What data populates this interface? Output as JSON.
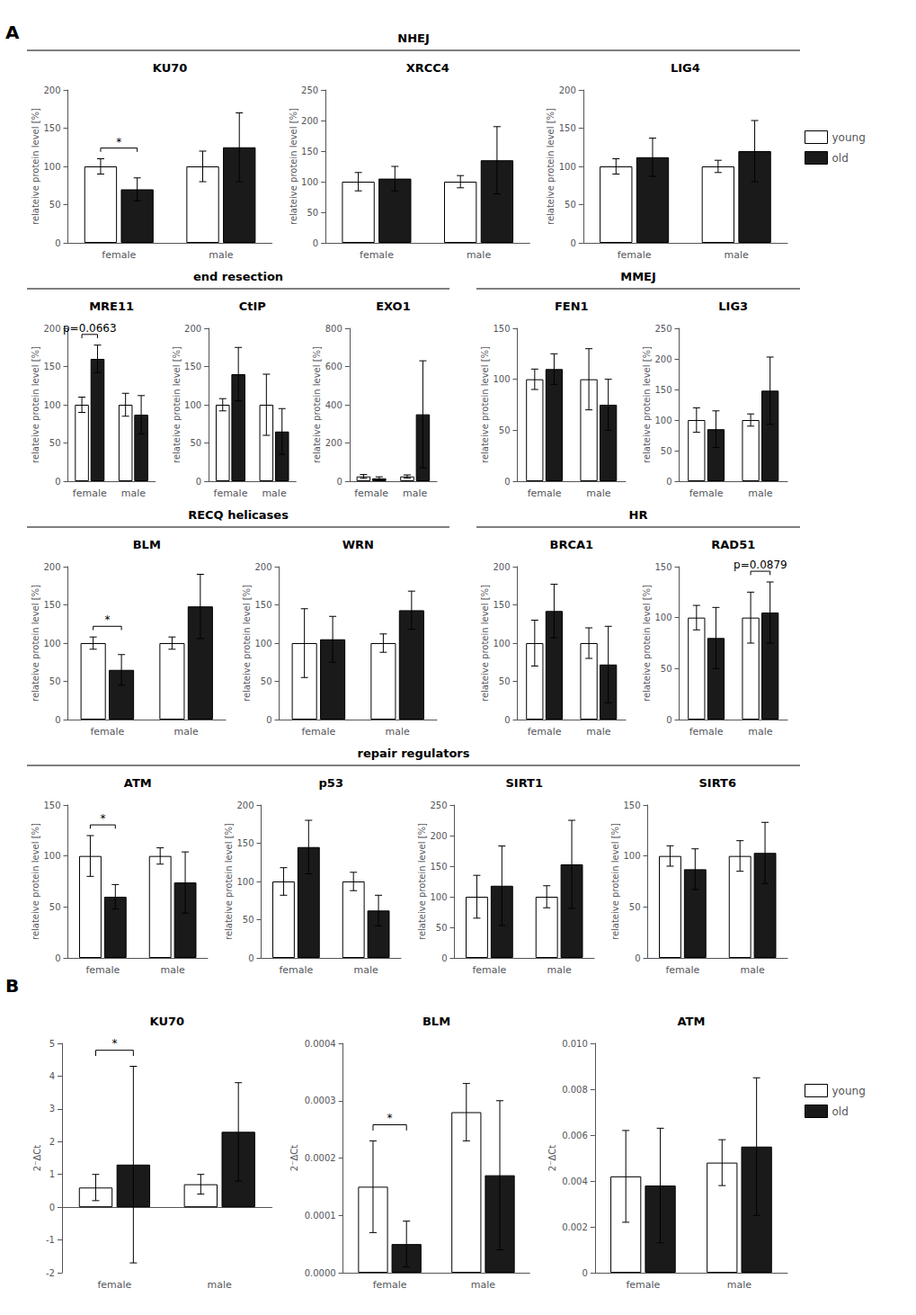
{
  "chart_data": [
    {
      "type": "bar",
      "panel": "A",
      "section": "NHEJ",
      "title": "KU70",
      "ylabel": "relateive protein level [%]",
      "categories": [
        "female",
        "male"
      ],
      "series": [
        {
          "name": "young",
          "color": "white",
          "values": [
            100,
            100
          ],
          "errors": [
            10,
            20
          ]
        },
        {
          "name": "old",
          "color": "#1a1a1a",
          "values": [
            70,
            125
          ],
          "errors": [
            15,
            45
          ]
        }
      ],
      "ylim": [
        0,
        200
      ],
      "yticks": [
        0,
        50,
        100,
        150,
        200
      ],
      "grid": false,
      "annotations": [
        {
          "text": "*",
          "category": "female"
        }
      ]
    },
    {
      "type": "bar",
      "panel": "A",
      "section": "NHEJ",
      "title": "XRCC4",
      "ylabel": "relateive protein level [%]",
      "categories": [
        "female",
        "male"
      ],
      "series": [
        {
          "name": "young",
          "color": "white",
          "values": [
            100,
            100
          ],
          "errors": [
            15,
            10
          ]
        },
        {
          "name": "old",
          "color": "#1a1a1a",
          "values": [
            105,
            135
          ],
          "errors": [
            20,
            55
          ]
        }
      ],
      "ylim": [
        0,
        250
      ],
      "yticks": [
        0,
        50,
        100,
        150,
        200,
        250
      ],
      "grid": false
    },
    {
      "type": "bar",
      "panel": "A",
      "section": "NHEJ",
      "title": "LIG4",
      "ylabel": "relateive protein level [%]",
      "categories": [
        "female",
        "male"
      ],
      "series": [
        {
          "name": "young",
          "color": "white",
          "values": [
            100,
            100
          ],
          "errors": [
            10,
            8
          ]
        },
        {
          "name": "old",
          "color": "#1a1a1a",
          "values": [
            112,
            120
          ],
          "errors": [
            25,
            40
          ]
        }
      ],
      "ylim": [
        0,
        200
      ],
      "yticks": [
        0,
        50,
        100,
        150,
        200
      ],
      "grid": false,
      "legend": "right"
    },
    {
      "type": "bar",
      "panel": "A",
      "section": "end resection",
      "title": "MRE11",
      "ylabel": "relateive protein level [%]",
      "categories": [
        "female",
        "male"
      ],
      "series": [
        {
          "name": "young",
          "color": "white",
          "values": [
            100,
            100
          ],
          "errors": [
            10,
            15
          ]
        },
        {
          "name": "old",
          "color": "#1a1a1a",
          "values": [
            160,
            87
          ],
          "errors": [
            18,
            25
          ]
        }
      ],
      "ylim": [
        0,
        200
      ],
      "yticks": [
        0,
        50,
        100,
        150,
        200
      ],
      "grid": false,
      "annotations": [
        {
          "text": "p=0.0663",
          "category": "female"
        }
      ]
    },
    {
      "type": "bar",
      "panel": "A",
      "section": "end resection",
      "title": "CtIP",
      "ylabel": "relateive protein level [%]",
      "categories": [
        "female",
        "male"
      ],
      "series": [
        {
          "name": "young",
          "color": "white",
          "values": [
            100,
            100
          ],
          "errors": [
            8,
            40
          ]
        },
        {
          "name": "old",
          "color": "#1a1a1a",
          "values": [
            140,
            65
          ],
          "errors": [
            35,
            30
          ]
        }
      ],
      "ylim": [
        0,
        200
      ],
      "yticks": [
        0,
        50,
        100,
        150,
        200
      ],
      "grid": false
    },
    {
      "type": "bar",
      "panel": "A",
      "section": "end resection",
      "title": "EXO1",
      "ylabel": "relateive protein level [%]",
      "categories": [
        "female",
        "male"
      ],
      "series": [
        {
          "name": "young",
          "color": "white",
          "values": [
            25,
            25
          ],
          "errors": [
            10,
            8
          ]
        },
        {
          "name": "old",
          "color": "#1a1a1a",
          "values": [
            15,
            350
          ],
          "errors": [
            8,
            280
          ]
        }
      ],
      "ylim": [
        0,
        800
      ],
      "yticks": [
        0,
        200,
        400,
        600,
        800
      ],
      "grid": false
    },
    {
      "type": "bar",
      "panel": "A",
      "section": "MMEJ",
      "title": "FEN1",
      "ylabel": "relateive protein level [%]",
      "categories": [
        "female",
        "male"
      ],
      "series": [
        {
          "name": "young",
          "color": "white",
          "values": [
            100,
            100
          ],
          "errors": [
            10,
            30
          ]
        },
        {
          "name": "old",
          "color": "#1a1a1a",
          "values": [
            110,
            75
          ],
          "errors": [
            15,
            25
          ]
        }
      ],
      "ylim": [
        0,
        150
      ],
      "yticks": [
        0,
        50,
        100,
        150
      ],
      "grid": false
    },
    {
      "type": "bar",
      "panel": "A",
      "section": "MMEJ",
      "title": "LIG3",
      "ylabel": "relateive protein level [%]",
      "categories": [
        "female",
        "male"
      ],
      "series": [
        {
          "name": "young",
          "color": "white",
          "values": [
            100,
            100
          ],
          "errors": [
            20,
            10
          ]
        },
        {
          "name": "old",
          "color": "#1a1a1a",
          "values": [
            85,
            148
          ],
          "errors": [
            30,
            55
          ]
        }
      ],
      "ylim": [
        0,
        250
      ],
      "yticks": [
        0,
        50,
        100,
        150,
        200,
        250
      ],
      "grid": false
    },
    {
      "type": "bar",
      "panel": "A",
      "section": "RECQ helicases",
      "title": "BLM",
      "ylabel": "relateive protein level [%]",
      "categories": [
        "female",
        "male"
      ],
      "series": [
        {
          "name": "young",
          "color": "white",
          "values": [
            100,
            100
          ],
          "errors": [
            8,
            8
          ]
        },
        {
          "name": "old",
          "color": "#1a1a1a",
          "values": [
            65,
            148
          ],
          "errors": [
            20,
            42
          ]
        }
      ],
      "ylim": [
        0,
        200
      ],
      "yticks": [
        0,
        50,
        100,
        150,
        200
      ],
      "grid": false,
      "annotations": [
        {
          "text": "*",
          "category": "female"
        }
      ]
    },
    {
      "type": "bar",
      "panel": "A",
      "section": "RECQ helicases",
      "title": "WRN",
      "ylabel": "relateive protein level [%]",
      "categories": [
        "female",
        "male"
      ],
      "series": [
        {
          "name": "young",
          "color": "white",
          "values": [
            100,
            100
          ],
          "errors": [
            45,
            12
          ]
        },
        {
          "name": "old",
          "color": "#1a1a1a",
          "values": [
            105,
            143
          ],
          "errors": [
            30,
            25
          ]
        }
      ],
      "ylim": [
        0,
        200
      ],
      "yticks": [
        0,
        50,
        100,
        150,
        200
      ],
      "grid": false
    },
    {
      "type": "bar",
      "panel": "A",
      "section": "HR",
      "title": "BRCA1",
      "ylabel": "relateive protein level [%]",
      "categories": [
        "female",
        "male"
      ],
      "series": [
        {
          "name": "young",
          "color": "white",
          "values": [
            100,
            100
          ],
          "errors": [
            30,
            20
          ]
        },
        {
          "name": "old",
          "color": "#1a1a1a",
          "values": [
            142,
            72
          ],
          "errors": [
            35,
            50
          ]
        }
      ],
      "ylim": [
        0,
        200
      ],
      "yticks": [
        0,
        50,
        100,
        150,
        200
      ],
      "grid": false
    },
    {
      "type": "bar",
      "panel": "A",
      "section": "HR",
      "title": "RAD51",
      "ylabel": "relateive protein level [%]",
      "categories": [
        "female",
        "male"
      ],
      "series": [
        {
          "name": "young",
          "color": "white",
          "values": [
            100,
            100
          ],
          "errors": [
            12,
            25
          ]
        },
        {
          "name": "old",
          "color": "#1a1a1a",
          "values": [
            80,
            105
          ],
          "errors": [
            30,
            30
          ]
        }
      ],
      "ylim": [
        0,
        150
      ],
      "yticks": [
        0,
        50,
        100,
        150
      ],
      "grid": false,
      "annotations": [
        {
          "text": "p=0.0879",
          "category": "male"
        }
      ]
    },
    {
      "type": "bar",
      "panel": "A",
      "section": "repair regulators",
      "title": "ATM",
      "ylabel": "relateive protein level [%]",
      "categories": [
        "female",
        "male"
      ],
      "series": [
        {
          "name": "young",
          "color": "white",
          "values": [
            100,
            100
          ],
          "errors": [
            20,
            8
          ]
        },
        {
          "name": "old",
          "color": "#1a1a1a",
          "values": [
            60,
            74
          ],
          "errors": [
            12,
            30
          ]
        }
      ],
      "ylim": [
        0,
        150
      ],
      "yticks": [
        0,
        50,
        100,
        150
      ],
      "grid": false,
      "annotations": [
        {
          "text": "*",
          "category": "female"
        }
      ]
    },
    {
      "type": "bar",
      "panel": "A",
      "section": "repair regulators",
      "title": "p53",
      "ylabel": "relateive protein level [%]",
      "categories": [
        "female",
        "male"
      ],
      "series": [
        {
          "name": "young",
          "color": "white",
          "values": [
            100,
            100
          ],
          "errors": [
            18,
            12
          ]
        },
        {
          "name": "old",
          "color": "#1a1a1a",
          "values": [
            145,
            62
          ],
          "errors": [
            35,
            20
          ]
        }
      ],
      "ylim": [
        0,
        200
      ],
      "yticks": [
        0,
        50,
        100,
        150,
        200
      ],
      "grid": false
    },
    {
      "type": "bar",
      "panel": "A",
      "section": "repair regulators",
      "title": "SIRT1",
      "ylabel": "relateive protein level [%]",
      "categories": [
        "female",
        "male"
      ],
      "series": [
        {
          "name": "young",
          "color": "white",
          "values": [
            100,
            100
          ],
          "errors": [
            35,
            18
          ]
        },
        {
          "name": "old",
          "color": "#1a1a1a",
          "values": [
            118,
            153
          ],
          "errors": [
            65,
            72
          ]
        }
      ],
      "ylim": [
        0,
        250
      ],
      "yticks": [
        0,
        50,
        100,
        150,
        200,
        250
      ],
      "grid": false
    },
    {
      "type": "bar",
      "panel": "A",
      "section": "repair regulators",
      "title": "SIRT6",
      "ylabel": "relateive protein level [%]",
      "categories": [
        "female",
        "male"
      ],
      "series": [
        {
          "name": "young",
          "color": "white",
          "values": [
            100,
            100
          ],
          "errors": [
            10,
            15
          ]
        },
        {
          "name": "old",
          "color": "#1a1a1a",
          "values": [
            87,
            103
          ],
          "errors": [
            20,
            30
          ]
        }
      ],
      "ylim": [
        0,
        150
      ],
      "yticks": [
        0,
        50,
        100,
        150
      ],
      "grid": false
    },
    {
      "type": "bar",
      "panel": "B",
      "title": "KU70",
      "ylabel": "2⁻ΔCt",
      "categories": [
        "female",
        "male"
      ],
      "series": [
        {
          "name": "young",
          "color": "white",
          "values": [
            0.6,
            0.7
          ],
          "errors": [
            0.4,
            0.3
          ]
        },
        {
          "name": "old",
          "color": "#1a1a1a",
          "values": [
            1.3,
            2.3
          ],
          "errors": [
            3.0,
            1.5
          ]
        }
      ],
      "ylim": [
        -2,
        5
      ],
      "yticks": [
        -2,
        -1,
        0,
        1,
        2,
        3,
        4,
        5
      ],
      "grid": false,
      "annotations": [
        {
          "text": "*",
          "category": "female"
        }
      ]
    },
    {
      "type": "bar",
      "panel": "B",
      "title": "BLM",
      "ylabel": "2⁻ΔCt",
      "categories": [
        "female",
        "male"
      ],
      "series": [
        {
          "name": "young",
          "color": "white",
          "values": [
            0.00015,
            0.00028
          ],
          "errors": [
            8e-05,
            5e-05
          ]
        },
        {
          "name": "old",
          "color": "#1a1a1a",
          "values": [
            5e-05,
            0.00017
          ],
          "errors": [
            4e-05,
            0.00013
          ]
        }
      ],
      "ylim": [
        0,
        0.0004
      ],
      "yticks": [
        {
          "value": 0,
          "label": "0.0000"
        },
        {
          "value": 0.0001,
          "label": "0.0001"
        },
        {
          "value": 0.0002,
          "label": "0.0002"
        },
        {
          "value": 0.0003,
          "label": "0.0003"
        },
        {
          "value": 0.0004,
          "label": "0.0004"
        }
      ],
      "grid": false,
      "annotations": [
        {
          "text": "*",
          "category": "female"
        }
      ]
    },
    {
      "type": "bar",
      "panel": "B",
      "title": "ATM",
      "ylabel": "2⁻ΔCt",
      "categories": [
        "female",
        "male"
      ],
      "series": [
        {
          "name": "young",
          "color": "white",
          "values": [
            0.0042,
            0.0048
          ],
          "errors": [
            0.002,
            0.001
          ]
        },
        {
          "name": "old",
          "color": "#1a1a1a",
          "values": [
            0.0038,
            0.0055
          ],
          "errors": [
            0.0025,
            0.003
          ]
        }
      ],
      "ylim": [
        0,
        0.01
      ],
      "yticks": [
        0,
        0.002,
        0.004,
        0.006,
        0.008,
        {
          "value": 0.01,
          "label": "0.010"
        }
      ],
      "grid": false,
      "legend": "right"
    }
  ]
}
